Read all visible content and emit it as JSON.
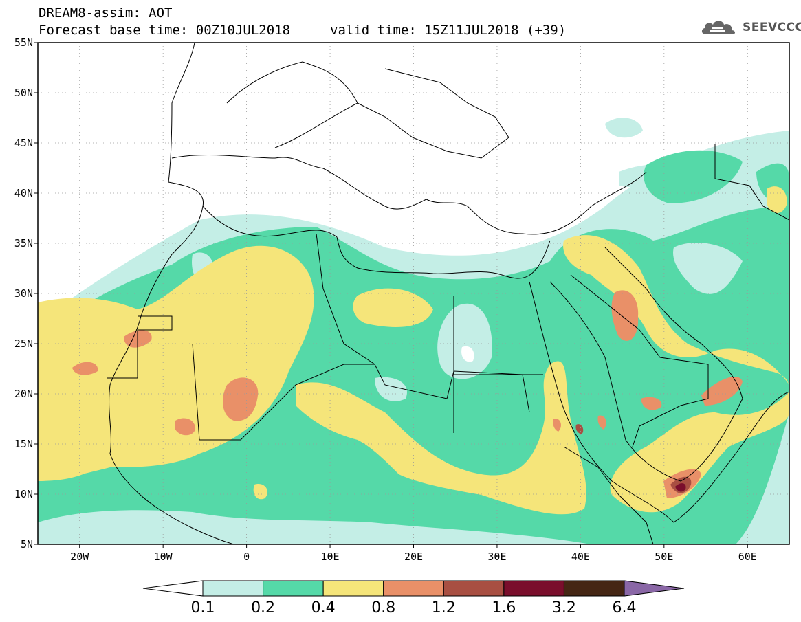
{
  "header": {
    "title": "DREAM8-assim: AOT",
    "base_time": "Forecast base time: 00Z10JUL2018",
    "valid_time": "valid time: 15Z11JUL2018 (+39)",
    "logo": "SEEVCCC"
  },
  "map": {
    "region": {
      "lon_min": -25,
      "lon_max": 65,
      "lat_min": 5,
      "lat_max": 55
    },
    "lat_ticks": [
      {
        "value": 55,
        "label": "55N"
      },
      {
        "value": 50,
        "label": "50N"
      },
      {
        "value": 45,
        "label": "45N"
      },
      {
        "value": 40,
        "label": "40N"
      },
      {
        "value": 35,
        "label": "35N"
      },
      {
        "value": 30,
        "label": "30N"
      },
      {
        "value": 25,
        "label": "25N"
      },
      {
        "value": 20,
        "label": "20N"
      },
      {
        "value": 15,
        "label": "15N"
      },
      {
        "value": 10,
        "label": "10N"
      },
      {
        "value": 5,
        "label": "5N"
      }
    ],
    "lon_ticks": [
      {
        "value": -20,
        "label": "20W"
      },
      {
        "value": -10,
        "label": "10W"
      },
      {
        "value": 0,
        "label": "0"
      },
      {
        "value": 10,
        "label": "10E"
      },
      {
        "value": 20,
        "label": "20E"
      },
      {
        "value": 30,
        "label": "30E"
      },
      {
        "value": 40,
        "label": "40E"
      },
      {
        "value": 50,
        "label": "50E"
      },
      {
        "value": 60,
        "label": "60E"
      }
    ],
    "grid": true
  },
  "colorbar": {
    "bins": [
      {
        "from": 0.1,
        "to": 0.2,
        "color": "#c4eee6"
      },
      {
        "from": 0.2,
        "to": 0.4,
        "color": "#55d9a8"
      },
      {
        "from": 0.4,
        "to": 0.8,
        "color": "#f5e57a"
      },
      {
        "from": 0.8,
        "to": 1.2,
        "color": "#e99068"
      },
      {
        "from": 1.2,
        "to": 1.6,
        "color": "#a84f42"
      },
      {
        "from": 1.6,
        "to": 3.2,
        "color": "#7a0e2c"
      },
      {
        "from": 3.2,
        "to": 6.4,
        "color": "#452614"
      }
    ],
    "under_color": "#ffffff",
    "over_color": "#8a67a6",
    "labels": [
      "0.1",
      "0.2",
      "0.4",
      "0.8",
      "1.2",
      "1.6",
      "3.2",
      "6.4"
    ]
  }
}
